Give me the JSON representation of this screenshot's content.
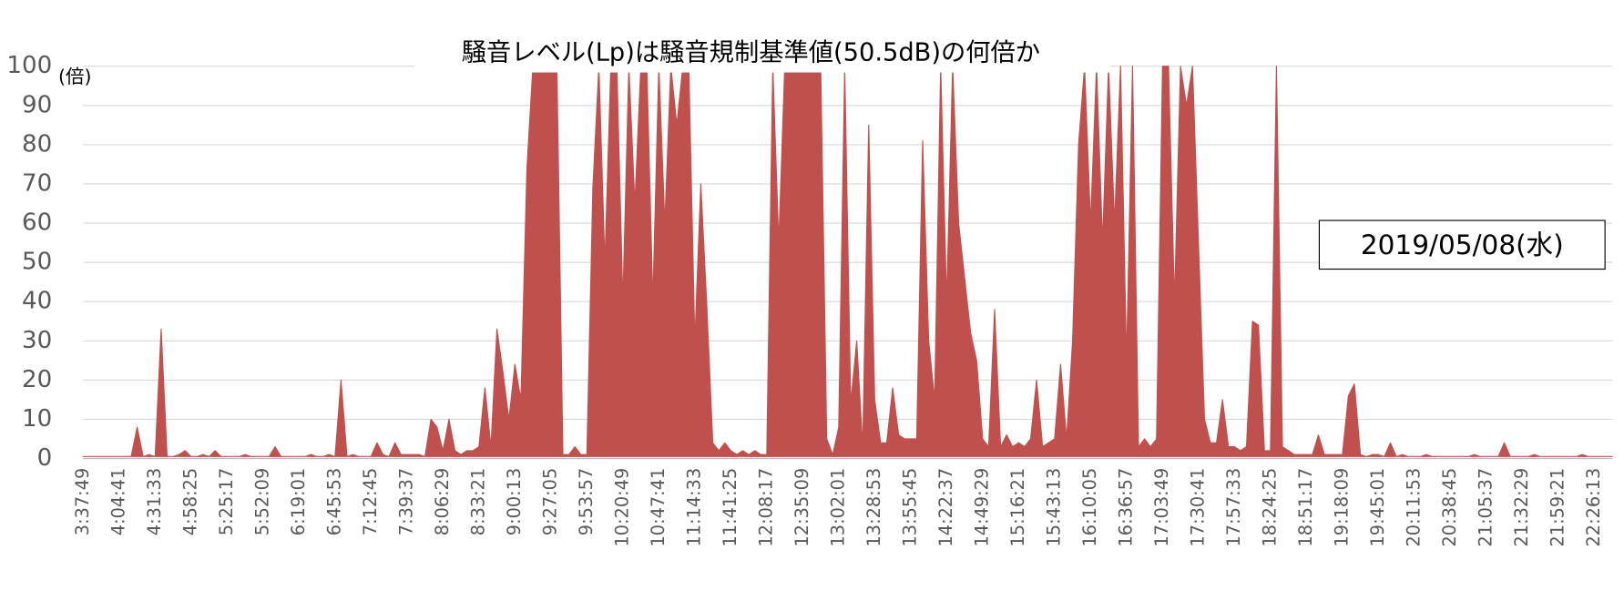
{
  "chart_data": {
    "type": "area",
    "title": "騒音レベル(Lp)は騒音規制基準値(50.5dB)の何倍か",
    "y_unit": "(倍)",
    "annotation": "2019/05/08(水)",
    "color": "#c0504d",
    "grid": true,
    "ylim": [
      0,
      100
    ],
    "yticks": [
      0,
      10,
      20,
      30,
      40,
      50,
      60,
      70,
      80,
      90,
      100
    ],
    "categories": [
      "3:37:49",
      null,
      null,
      null,
      null,
      null,
      "4:04:41",
      null,
      null,
      null,
      null,
      null,
      "4:31:33",
      null,
      null,
      null,
      null,
      null,
      "4:58:25",
      null,
      null,
      null,
      null,
      null,
      "5:25:17",
      null,
      null,
      null,
      null,
      null,
      "5:52:09",
      null,
      null,
      null,
      null,
      null,
      "6:19:01",
      null,
      null,
      null,
      null,
      null,
      "6:45:53",
      null,
      null,
      null,
      null,
      null,
      "7:12:45",
      null,
      null,
      null,
      null,
      null,
      "7:39:37",
      null,
      null,
      null,
      null,
      null,
      "8:06:29",
      null,
      null,
      null,
      null,
      null,
      "8:33:21",
      null,
      null,
      null,
      null,
      null,
      "9:00:13",
      null,
      null,
      null,
      null,
      null,
      "9:27:05",
      null,
      null,
      null,
      null,
      null,
      "9:53:57",
      null,
      null,
      null,
      null,
      null,
      "10:20:49",
      null,
      null,
      null,
      null,
      null,
      "10:47:41",
      null,
      null,
      null,
      null,
      null,
      "11:14:33",
      null,
      null,
      null,
      null,
      null,
      "11:41:25",
      null,
      null,
      null,
      null,
      null,
      "12:08:17",
      null,
      null,
      null,
      null,
      null,
      "12:35:09",
      null,
      null,
      null,
      null,
      null,
      "13:02:01",
      null,
      null,
      null,
      null,
      null,
      "13:28:53",
      null,
      null,
      null,
      null,
      null,
      "13:55:45",
      null,
      null,
      null,
      null,
      null,
      "14:22:37",
      null,
      null,
      null,
      null,
      null,
      "14:49:29",
      null,
      null,
      null,
      null,
      null,
      "15:16:21",
      null,
      null,
      null,
      null,
      null,
      "15:43:13",
      null,
      null,
      null,
      null,
      null,
      "16:10:05",
      null,
      null,
      null,
      null,
      null,
      "16:36:57",
      null,
      null,
      null,
      null,
      null,
      "17:03:49",
      null,
      null,
      null,
      null,
      null,
      "17:30:41",
      null,
      null,
      null,
      null,
      null,
      "17:57:33",
      null,
      null,
      null,
      null,
      null,
      "18:24:25",
      null,
      null,
      null,
      null,
      null,
      "18:51:17",
      null,
      null,
      null,
      null,
      null,
      "19:18:09",
      null,
      null,
      null,
      null,
      null,
      "19:45:01",
      null,
      null,
      null,
      null,
      null,
      "20:11:53",
      null,
      null,
      null,
      null,
      null,
      "20:38:45",
      null,
      null,
      null,
      null,
      null,
      "21:05:37",
      null,
      null,
      null,
      null,
      null,
      "21:32:29",
      null,
      null,
      null,
      null,
      null,
      "21:59:21",
      null,
      null,
      null,
      null,
      null,
      "22:26:13",
      null,
      null,
      null
    ],
    "values": [
      0.5,
      0.5,
      0.5,
      0.5,
      0.5,
      0.5,
      0.5,
      0.5,
      0.5,
      8,
      0.5,
      1,
      0.5,
      33,
      0.5,
      0.5,
      1,
      2,
      0.5,
      0.5,
      1,
      0.5,
      2,
      0.5,
      0.5,
      0.5,
      0.5,
      1,
      0.5,
      0.5,
      0.5,
      0.5,
      3,
      0.5,
      0.5,
      0.5,
      0.5,
      0.5,
      1,
      0.5,
      0.5,
      1,
      0.5,
      20,
      0.5,
      1,
      0.5,
      0.5,
      0.5,
      4,
      1,
      0.5,
      4,
      1,
      1,
      1,
      1,
      0.5,
      10,
      8,
      2,
      10,
      2,
      1,
      2,
      2,
      3,
      18,
      3,
      33,
      22,
      10,
      24,
      15,
      74,
      100,
      100,
      100,
      100,
      100,
      1,
      1,
      3,
      1,
      1,
      69,
      100,
      50,
      100,
      100,
      40,
      100,
      65,
      100,
      100,
      40,
      100,
      60,
      100,
      85,
      100,
      100,
      30,
      70,
      39,
      4,
      2,
      4,
      2,
      1,
      2,
      1,
      2,
      1,
      1,
      100,
      55,
      100,
      100,
      100,
      100,
      100,
      100,
      100,
      5,
      1,
      8,
      100,
      14,
      30,
      3,
      85,
      15,
      4,
      4,
      18,
      6,
      5,
      5,
      5,
      81,
      30,
      15,
      100,
      40,
      100,
      60,
      46,
      32,
      25,
      5,
      3,
      38,
      3,
      6,
      3,
      4,
      3,
      5,
      20,
      3,
      4,
      5,
      24,
      5,
      30,
      80,
      100,
      60,
      100,
      55,
      100,
      60,
      100,
      25,
      100,
      3,
      5,
      3,
      5,
      100,
      100,
      40,
      100,
      90,
      100,
      55,
      10,
      4,
      4,
      15,
      3,
      3,
      2,
      3,
      35,
      34,
      2,
      2,
      100,
      3,
      2,
      1,
      1,
      1,
      1,
      6,
      1,
      1,
      1,
      1,
      16,
      19,
      1,
      0.5,
      1,
      1,
      0.5,
      4,
      0.5,
      1,
      0.5,
      0.5,
      0.5,
      1,
      0.5,
      0.5,
      0.5,
      0.5,
      0.5,
      0.5,
      0.5,
      1,
      0.5,
      0.5,
      0.5,
      0.5,
      4,
      0.5,
      0.5,
      0.5,
      0.5,
      1,
      0.5,
      0.5,
      0.5,
      0.5,
      0.5,
      0.5,
      0.5,
      1,
      0.5,
      0.5,
      0.5,
      0.5,
      0.5
    ]
  }
}
